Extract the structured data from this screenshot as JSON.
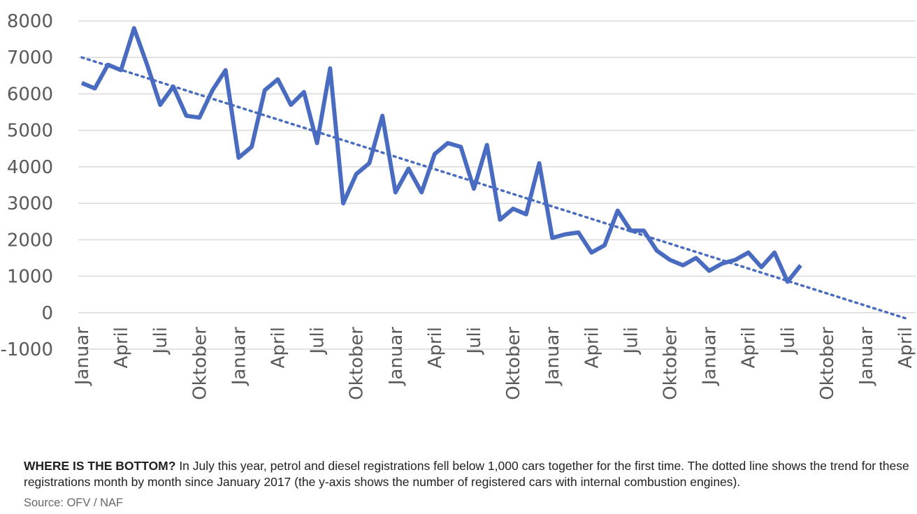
{
  "chart_data": {
    "type": "line",
    "title": "",
    "xlabel": "",
    "ylabel": "",
    "ylim": [
      -1000,
      8000
    ],
    "yticks": [
      8000,
      7000,
      6000,
      5000,
      4000,
      3000,
      2000,
      1000,
      0,
      -1000
    ],
    "grid": true,
    "legend": "none",
    "x_tick_labels": [
      "Januar",
      "April",
      "Juli",
      "Oktober",
      "Januar",
      "April",
      "Juli",
      "Oktober",
      "Januar",
      "April",
      "Juli",
      "Oktober",
      "Januar",
      "April",
      "Juli",
      "Oktober",
      "Januar",
      "April",
      "Juli",
      "Oktober",
      "Januar",
      "April"
    ],
    "series": [
      {
        "style": "solid",
        "color": "#4a6cc0",
        "values": [
          6300,
          6150,
          6800,
          6650,
          7800,
          6800,
          5700,
          6200,
          5400,
          5350,
          6100,
          6650,
          4250,
          4550,
          6100,
          6400,
          5700,
          6050,
          4650,
          6700,
          3000,
          3800,
          4100,
          5400,
          3300,
          3950,
          3300,
          4350,
          4650,
          4550,
          3400,
          4600,
          2550,
          2850,
          2700,
          4100,
          2050,
          2150,
          2200,
          1650,
          1850,
          2800,
          2250,
          2250,
          1700,
          1450,
          1300,
          1500,
          1150,
          1350,
          1450,
          1650,
          1250,
          1650,
          850,
          1300
        ]
      },
      {
        "style": "dotted",
        "color": "#4a6cc0",
        "type": "trend",
        "x_range": [
          0,
          63
        ],
        "values": [
          7000,
          -150
        ]
      }
    ]
  },
  "caption": {
    "bold": "WHERE IS THE BOTTOM?",
    "text": " In July this year, petrol and diesel registrations fell below 1,000 cars together for the first time. The dotted line shows the trend for these registrations month by month since January 2017 (the y-axis shows the number of registered cars with internal combustion engines)."
  },
  "source": "Source: OFV / NAF"
}
